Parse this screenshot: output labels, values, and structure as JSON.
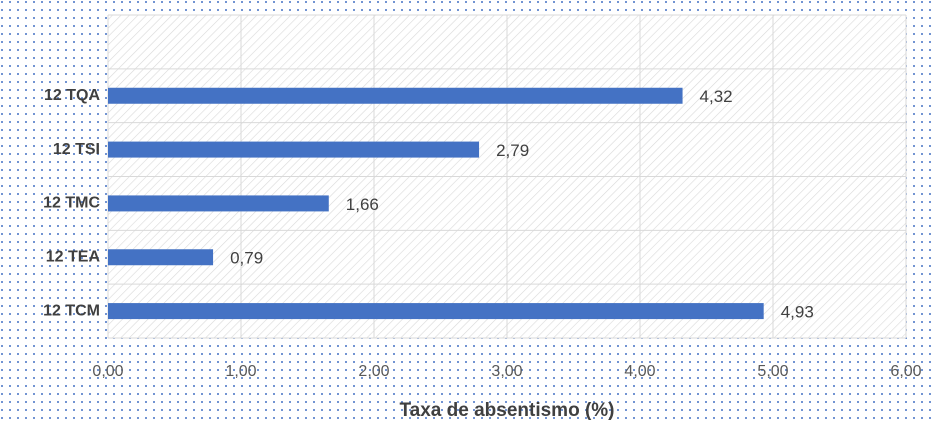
{
  "chart_data": {
    "type": "hbar",
    "categories": [
      null,
      "12 TQA",
      "12 TSI",
      "12 TMC",
      "12 TEA",
      "12 TCM"
    ],
    "values": [
      null,
      4.32,
      2.79,
      1.66,
      0.79,
      4.93
    ],
    "value_labels": [
      null,
      "4,32",
      "2,79",
      "1,66",
      "0,79",
      "4,93"
    ],
    "color": "#4472c4",
    "xlim": [
      0,
      6
    ],
    "xticks": [
      {
        "value": 0,
        "label": "0,00"
      },
      {
        "value": 1,
        "label": "1,00"
      },
      {
        "value": 2,
        "label": "2,00"
      },
      {
        "value": 3,
        "label": "3,00"
      },
      {
        "value": 4,
        "label": "4,00"
      },
      {
        "value": 5,
        "label": "5,00"
      },
      {
        "value": 6,
        "label": "6,00"
      }
    ],
    "xlabel": "Taxa de absentismo (%)",
    "grid": true
  }
}
